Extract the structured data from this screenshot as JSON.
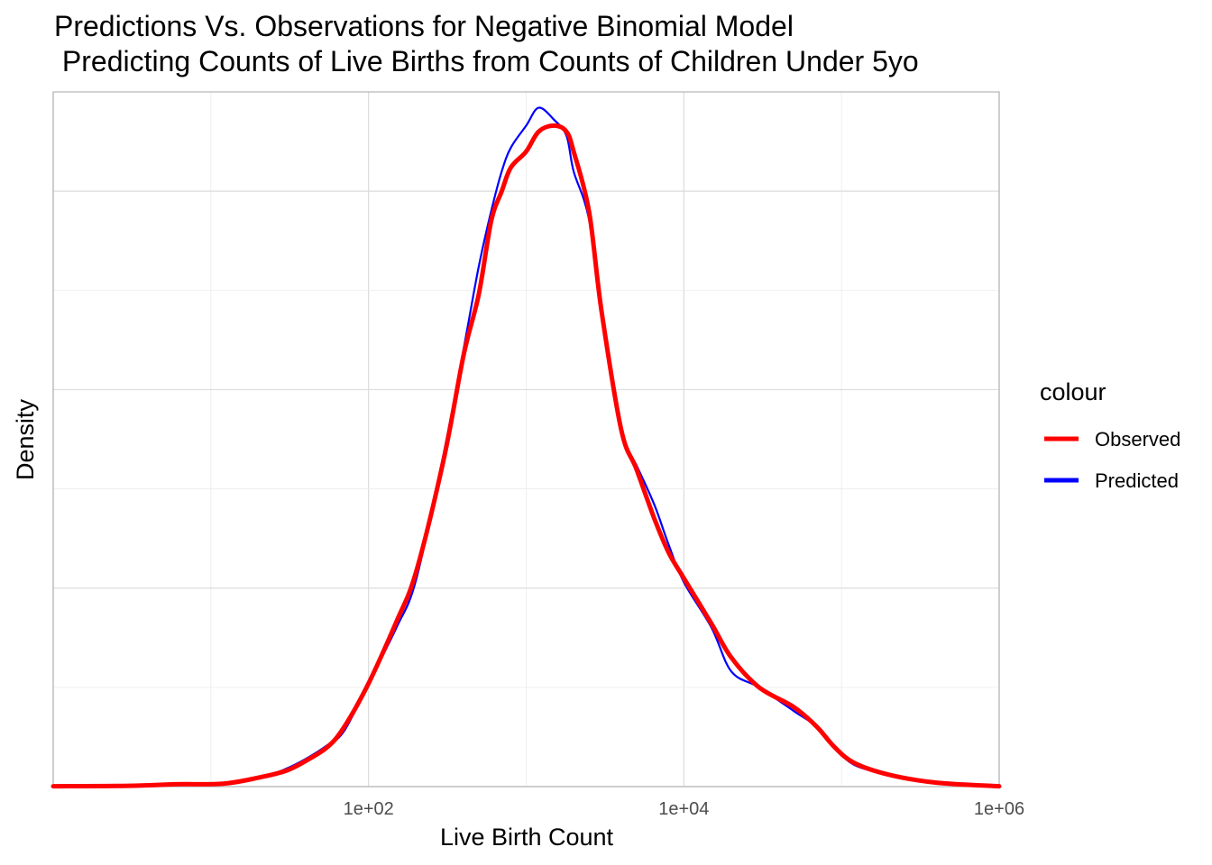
{
  "chart_data": {
    "type": "line",
    "title": "Predictions Vs. Observations for Negative Binomial Model",
    "subtitle": " Predicting Counts of Live Births from Counts of Children Under 5yo",
    "xlabel": "Live Birth Count",
    "ylabel": "Density",
    "x_scale": "log10",
    "xlim": [
      1,
      1000000
    ],
    "x_ticks": [
      100,
      10000,
      1000000
    ],
    "x_tick_labels": [
      "1e+02",
      "1e+04",
      "1e+06"
    ],
    "y_tick_labels": [],
    "ylim": [
      0,
      0.35
    ],
    "grid": true,
    "legend": {
      "title": "colour",
      "position": "right",
      "entries": [
        {
          "label": "Observed",
          "color": "#ff0000"
        },
        {
          "label": "Predicted",
          "color": "#0000ff"
        }
      ]
    },
    "series": [
      {
        "name": "Observed",
        "color": "#ff0000",
        "points": [
          [
            1,
            0.0002
          ],
          [
            3,
            0.0004
          ],
          [
            6,
            0.0012
          ],
          [
            12,
            0.0015
          ],
          [
            20,
            0.0045
          ],
          [
            30,
            0.008
          ],
          [
            40,
            0.013
          ],
          [
            55,
            0.02
          ],
          [
            70,
            0.03
          ],
          [
            100,
            0.052
          ],
          [
            150,
            0.083
          ],
          [
            200,
            0.108
          ],
          [
            300,
            0.165
          ],
          [
            400,
            0.217
          ],
          [
            500,
            0.248
          ],
          [
            600,
            0.285
          ],
          [
            700,
            0.3
          ],
          [
            800,
            0.312
          ],
          [
            1000,
            0.32
          ],
          [
            1200,
            0.33
          ],
          [
            1500,
            0.333
          ],
          [
            1800,
            0.33
          ],
          [
            2000,
            0.32
          ],
          [
            2500,
            0.29
          ],
          [
            3000,
            0.24
          ],
          [
            4000,
            0.18
          ],
          [
            5000,
            0.16
          ],
          [
            6500,
            0.135
          ],
          [
            8000,
            0.118
          ],
          [
            10000,
            0.105
          ],
          [
            15000,
            0.082
          ],
          [
            20000,
            0.065
          ],
          [
            30000,
            0.05
          ],
          [
            50000,
            0.04
          ],
          [
            70000,
            0.03
          ],
          [
            90000,
            0.02
          ],
          [
            120000,
            0.012
          ],
          [
            200000,
            0.006
          ],
          [
            400000,
            0.002
          ],
          [
            1000000,
            0.0002
          ]
        ]
      },
      {
        "name": "Predicted",
        "color": "#0000ff",
        "points": [
          [
            1,
            0.0002
          ],
          [
            3,
            0.0003
          ],
          [
            6,
            0.0008
          ],
          [
            12,
            0.0012
          ],
          [
            20,
            0.004
          ],
          [
            30,
            0.009
          ],
          [
            40,
            0.014
          ],
          [
            55,
            0.021
          ],
          [
            70,
            0.028
          ],
          [
            100,
            0.052
          ],
          [
            150,
            0.08
          ],
          [
            200,
            0.104
          ],
          [
            300,
            0.168
          ],
          [
            400,
            0.22
          ],
          [
            500,
            0.262
          ],
          [
            600,
            0.29
          ],
          [
            700,
            0.31
          ],
          [
            800,
            0.322
          ],
          [
            1000,
            0.333
          ],
          [
            1200,
            0.342
          ],
          [
            1500,
            0.336
          ],
          [
            1800,
            0.328
          ],
          [
            2000,
            0.31
          ],
          [
            2500,
            0.286
          ],
          [
            3000,
            0.238
          ],
          [
            4000,
            0.178
          ],
          [
            5000,
            0.162
          ],
          [
            6500,
            0.142
          ],
          [
            8000,
            0.122
          ],
          [
            10000,
            0.103
          ],
          [
            15000,
            0.08
          ],
          [
            20000,
            0.058
          ],
          [
            30000,
            0.05
          ],
          [
            50000,
            0.038
          ],
          [
            70000,
            0.03
          ],
          [
            90000,
            0.02
          ],
          [
            120000,
            0.011
          ],
          [
            200000,
            0.006
          ],
          [
            400000,
            0.002
          ],
          [
            1000000,
            0.0002
          ]
        ]
      }
    ]
  }
}
